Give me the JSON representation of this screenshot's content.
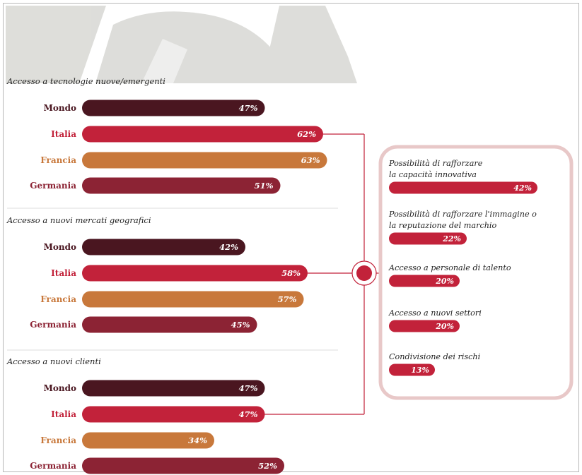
{
  "chart_data": {
    "type": "bar",
    "title": "",
    "xlabel": "",
    "ylabel": "",
    "xlim": [
      0,
      100
    ],
    "colors": {
      "Mondo": "#4a1620",
      "Italia": "#c2223a",
      "Francia": "#c8783b",
      "Germania": "#8c2334",
      "side_bar": "#c2223a",
      "box_border": "#e8c8c8",
      "connector": "#c2223a",
      "watermark": "#d8d8d4"
    },
    "groups": [
      {
        "title": "Accesso a tecnologie nuove/emergenti",
        "categories": [
          "Mondo",
          "Italia",
          "Francia",
          "Germania"
        ],
        "values": [
          47,
          62,
          63,
          51
        ],
        "labels": [
          "47%",
          "62%",
          "63%",
          "51%"
        ]
      },
      {
        "title": "Accesso a nuovi mercati geografici",
        "categories": [
          "Mondo",
          "Italia",
          "Francia",
          "Germania"
        ],
        "values": [
          42,
          58,
          57,
          45
        ],
        "labels": [
          "42%",
          "58%",
          "57%",
          "45%"
        ]
      },
      {
        "title": "Accesso a nuovi clienti",
        "categories": [
          "Mondo",
          "Italia",
          "Francia",
          "Germania"
        ],
        "values": [
          47,
          47,
          34,
          52
        ],
        "labels": [
          "47%",
          "47%",
          "34%",
          "52%"
        ]
      }
    ],
    "side_panel": {
      "series": "Italia",
      "items": [
        {
          "label_lines": [
            "Possibilità di rafforzare",
            "la capacità innovativa"
          ],
          "value": 42,
          "label": "42%"
        },
        {
          "label_lines": [
            "Possibilità di rafforzare l'immagine o",
            "la reputazione del marchio"
          ],
          "value": 22,
          "label": "22%"
        },
        {
          "label_lines": [
            "Accesso a personale di talento"
          ],
          "value": 20,
          "label": "20%"
        },
        {
          "label_lines": [
            "Accesso a nuovi settori"
          ],
          "value": 20,
          "label": "20%"
        },
        {
          "label_lines": [
            "Condivisione dei rischi"
          ],
          "value": 13,
          "label": "13%"
        }
      ]
    }
  }
}
